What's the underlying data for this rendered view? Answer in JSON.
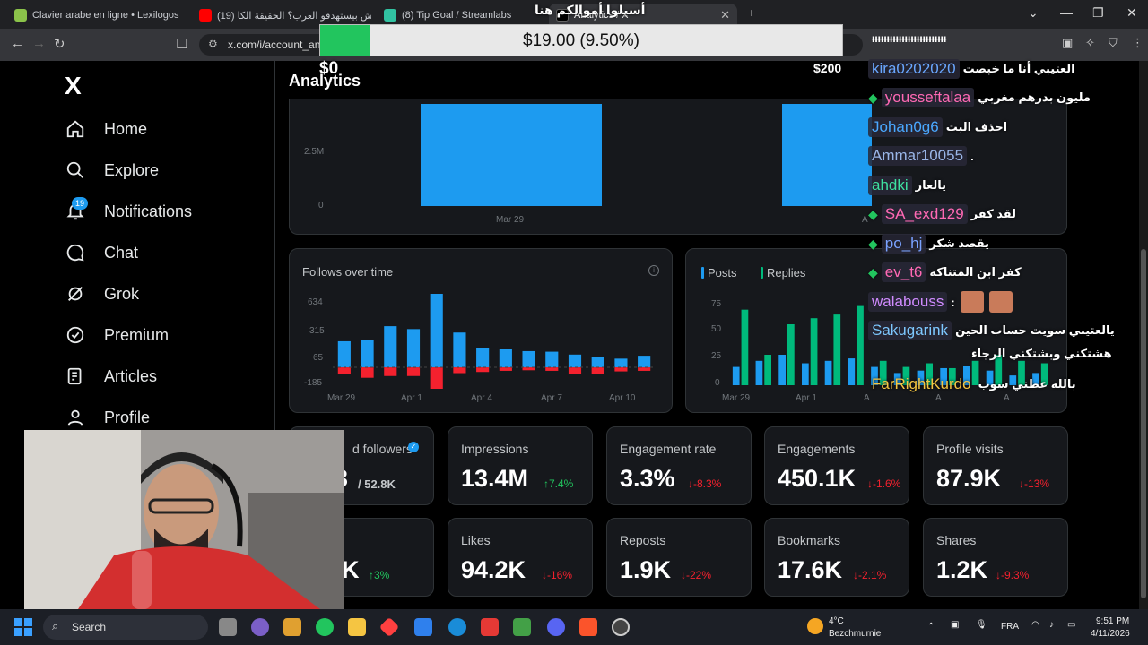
{
  "browser": {
    "tabs": [
      {
        "title": "Clavier arabe en ligne • Lexilogos",
        "favicon_color": "#8bc34a"
      },
      {
        "title": "(19) ليش بيستهدفو العرب؟ الحقيقة الكا",
        "favicon_color": "#ff0000"
      },
      {
        "title": "(8) Tip Goal / Streamlabs",
        "favicon_color": "#31c3a2"
      },
      {
        "title": "Analytics / X",
        "favicon_color": "#000000"
      }
    ],
    "url": "x.com/i/account_an"
  },
  "overlay": {
    "title": "أسيلوا أموالكم هنا",
    "tip_amount": "$19.00 (9.50%)",
    "tip_fraction": 0.095,
    "tip_min": "$0",
    "tip_max": "$200"
  },
  "sidebar": {
    "logo": "X",
    "items": [
      {
        "label": "Home",
        "icon": "home-icon"
      },
      {
        "label": "Explore",
        "icon": "search-icon"
      },
      {
        "label": "Notifications",
        "icon": "bell-icon"
      },
      {
        "label": "Chat",
        "icon": "chat-icon"
      },
      {
        "label": "Grok",
        "icon": "grok-icon"
      },
      {
        "label": "Premium",
        "icon": "verified-icon"
      },
      {
        "label": "Articles",
        "icon": "article-icon"
      },
      {
        "label": "Profile",
        "icon": "person-icon"
      }
    ],
    "notification_count": "19"
  },
  "main": {
    "title": "Analytics",
    "top_chart": {
      "y_ticks": [
        "2.5M",
        "0"
      ],
      "x_ticks": [
        "Mar 29",
        "A"
      ]
    },
    "follows_chart": {
      "title": "Follows over time",
      "y_ticks": [
        "634",
        "315",
        "65",
        "-185"
      ],
      "x_ticks": [
        "Mar 29",
        "Apr 1",
        "Apr 4",
        "Apr 7",
        "Apr 10"
      ]
    },
    "posts_chart": {
      "legend": [
        "Posts",
        "Replies"
      ],
      "y_ticks": [
        "75",
        "50",
        "25",
        "0"
      ],
      "x_ticks": [
        "Mar 29",
        "Apr 1",
        "A",
        "A",
        "A"
      ]
    },
    "stats_row1": [
      {
        "label": "d followers",
        "value": "3",
        "suffix": "/ 52.8K",
        "delta": ""
      },
      {
        "label": "Impressions",
        "value": "13.4M",
        "delta": "↑7.4%",
        "dir": "up"
      },
      {
        "label": "Engagement rate",
        "value": "3.3%",
        "delta": "↓-8.3%",
        "dir": "down"
      },
      {
        "label": "Engagements",
        "value": "450.1K",
        "delta": "↓-1.6%",
        "dir": "down"
      },
      {
        "label": "Profile visits",
        "value": "87.9K",
        "delta": "↓-13%",
        "dir": "down"
      }
    ],
    "stats_row2": [
      {
        "label": "s",
        "value": "K",
        "delta": "↑3%",
        "dir": "up"
      },
      {
        "label": "Likes",
        "value": "94.2K",
        "delta": "↓-16%",
        "dir": "down"
      },
      {
        "label": "Reposts",
        "value": "1.9K",
        "delta": "↓-22%",
        "dir": "down"
      },
      {
        "label": "Bookmarks",
        "value": "17.6K",
        "delta": "↓-2.1%",
        "dir": "down"
      },
      {
        "label": "Shares",
        "value": "1.2K",
        "delta": "↓-9.3%",
        "dir": "down"
      }
    ]
  },
  "chart_data": [
    {
      "type": "bar",
      "x": [
        "Mar 29",
        "Mar 30",
        "Mar 31",
        "Apr 1",
        "Apr 2",
        "Apr 3",
        "Apr 4",
        "Apr 5",
        "Apr 6",
        "Apr 7",
        "Apr 8",
        "Apr 9",
        "Apr 10",
        "Apr 11"
      ],
      "series": [
        {
          "values": [
            225,
            240,
            355,
            330,
            634,
            300,
            165,
            155,
            140,
            135,
            110,
            90,
            75,
            100
          ],
          "color": "#1d9bf0"
        },
        {
          "values": [
            -60,
            -90,
            -75,
            -75,
            -185,
            -50,
            -40,
            -30,
            -25,
            -30,
            -60,
            -55,
            -35,
            -30
          ],
          "color": "#f4212e"
        }
      ],
      "title": "Follows over time",
      "y_ticks": [
        634,
        315,
        65,
        -185
      ]
    },
    {
      "type": "bar",
      "series": [
        {
          "name": "Posts",
          "values": [
            15,
            20,
            25,
            18,
            20,
            22,
            15,
            10,
            12,
            14,
            16,
            12,
            8,
            10
          ],
          "color": "#1d9bf0"
        },
        {
          "name": "Replies",
          "values": [
            62,
            25,
            50,
            55,
            58,
            65,
            20,
            15,
            18,
            14,
            20,
            25,
            20,
            18
          ],
          "color": "#00ba7c"
        }
      ],
      "y_ticks": [
        75,
        50,
        25,
        0
      ]
    }
  ],
  "chat": [
    {
      "user": "",
      "msg": "العتيبي أنا ما خبصت",
      "color": "#a5b4fc",
      "gem": false,
      "user_text": "kira0202020"
    },
    {
      "user": "yousseftalaa",
      "msg": "مليون بدرهم مغربي",
      "color": "#ff69b4",
      "gem": true
    },
    {
      "user": "Johan0g6",
      "msg": "احذف البث",
      "color": "#4aa8ff",
      "gem": false
    },
    {
      "user": "Ammar10055",
      "msg": ".",
      "color": "#9ab6e8",
      "gem": false
    },
    {
      "user": "ahdki",
      "msg": "يالعار",
      "color": "#3ee0a0",
      "gem": false
    },
    {
      "user": "SA_exd129",
      "msg": "لقد كفر",
      "color": "#ff69b4",
      "gem": true
    },
    {
      "user": "po_hj",
      "msg": "يقصد شكر",
      "color": "#7aa2ff",
      "gem": true
    },
    {
      "user": "ev_t6",
      "msg": "كفر ابن المتناكه",
      "color": "#ff69b4",
      "gem": true
    },
    {
      "user": "walabouss",
      "msg": "",
      "color": "#d08bff",
      "gem": false
    },
    {
      "user": "Sakugarink",
      "msg": "يالعتيبي سويت حساب الحين",
      "color": "#7ec8ff",
      "gem": false
    },
    {
      "user": "",
      "msg": "هشتكني وبشتكني الرجاء",
      "color": "#ffffff",
      "gem": false
    },
    {
      "user": "FarRightKurdo",
      "msg": "بالله عطني سوب",
      "color": "#f5c542",
      "gem": false
    }
  ],
  "taskbar": {
    "search_label": "Search",
    "weather_temp": "4°C",
    "weather_place": "Bezchmurnie",
    "lang": "FRA",
    "time": "9:51 PM",
    "date": "4/11/2026"
  }
}
